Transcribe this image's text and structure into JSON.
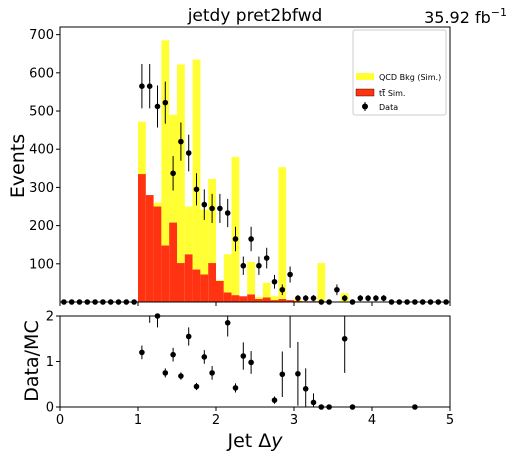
{
  "colors": {
    "qcd": "#ffff33",
    "ttbar": "#ff3311",
    "data": "#000000"
  },
  "chart_data": {
    "type": "bar",
    "title": "jetdy  pret2bfwd",
    "lumi_label": "35.92 fb",
    "lumi_exp": "−1",
    "xlabel_main": "Jet Δ",
    "xlabel_var": "y",
    "ylabel": "Events",
    "ratio_ylabel": "Data/MC",
    "xlim": [
      0,
      5
    ],
    "ylim": [
      0,
      720
    ],
    "ratio_ylim": [
      0,
      2
    ],
    "x_ticks": [
      "0",
      "1",
      "2",
      "3",
      "4",
      "5"
    ],
    "y_ticks": [
      "100",
      "200",
      "300",
      "400",
      "500",
      "600",
      "700"
    ],
    "ratio_y_ticks": [
      "0",
      "1",
      "2"
    ],
    "stacked": true,
    "legend_position": "upper-right",
    "legend": {
      "qcd": "QCD Bkg (Sim.)",
      "ttbar_prefix": "t",
      "ttbar_bar": "t",
      "ttbar_suffix": " Sim.",
      "data": "Data"
    },
    "bin_width": 0.1,
    "bin_edges_start": 0,
    "series": [
      {
        "name": "t t̄ Sim.",
        "values": [
          0,
          0,
          0,
          0,
          0,
          0,
          0,
          0,
          0,
          0,
          335,
          280,
          250,
          148,
          208,
          102,
          125,
          85,
          72,
          102,
          55,
          25,
          18,
          15,
          20,
          8,
          12,
          5,
          8,
          5,
          3,
          2,
          2,
          2,
          1,
          1,
          1,
          1,
          0,
          0,
          0,
          0,
          0,
          0,
          0,
          0,
          0,
          0,
          0,
          0
        ]
      },
      {
        "name": "QCD Bkg (Sim.)",
        "values": [
          0,
          0,
          0,
          0,
          0,
          0,
          0,
          0,
          0,
          0,
          137,
          0,
          10,
          537,
          282,
          520,
          125,
          550,
          170,
          220,
          2,
          100,
          362,
          0,
          85,
          5,
          38,
          10,
          345,
          0,
          5,
          0,
          0,
          100,
          0,
          0,
          22,
          0,
          0,
          0,
          0,
          0,
          0,
          0,
          0,
          0,
          0,
          0,
          0,
          0
        ]
      }
    ],
    "data_points": {
      "x": [
        0.05,
        0.15,
        0.25,
        0.35,
        0.45,
        0.55,
        0.65,
        0.75,
        0.85,
        0.95,
        1.05,
        1.15,
        1.25,
        1.35,
        1.45,
        1.55,
        1.65,
        1.75,
        1.85,
        1.95,
        2.05,
        2.15,
        2.25,
        2.35,
        2.45,
        2.55,
        2.65,
        2.75,
        2.85,
        2.95,
        3.05,
        3.15,
        3.25,
        3.35,
        3.45,
        3.55,
        3.65,
        3.75,
        3.85,
        3.95,
        4.05,
        4.15,
        4.25,
        4.35,
        4.45,
        4.55,
        4.65,
        4.75,
        4.85,
        4.95
      ],
      "y": [
        0,
        0,
        0,
        0,
        0,
        0,
        0,
        0,
        0,
        0,
        565,
        565,
        512,
        522,
        337,
        420,
        390,
        295,
        255,
        245,
        245,
        233,
        165,
        95,
        165,
        95,
        115,
        53,
        32,
        72,
        10,
        10,
        10,
        0,
        0,
        32,
        10,
        0,
        10,
        10,
        10,
        10,
        0,
        0,
        0,
        0,
        0,
        0,
        0,
        0
      ],
      "err": [
        0,
        0,
        0,
        0,
        0,
        0,
        0,
        0,
        0,
        0,
        58,
        58,
        55,
        55,
        45,
        50,
        48,
        42,
        40,
        38,
        38,
        37,
        32,
        24,
        32,
        24,
        27,
        18,
        14,
        21,
        8,
        8,
        8,
        0,
        0,
        14,
        8,
        0,
        8,
        8,
        8,
        8,
        0,
        0,
        0,
        0,
        0,
        0,
        0,
        0
      ]
    },
    "ratio_points": {
      "x": [
        1.05,
        1.15,
        1.25,
        1.35,
        1.45,
        1.55,
        1.65,
        1.75,
        1.85,
        1.95,
        2.15,
        2.25,
        2.35,
        2.45,
        2.75,
        2.85,
        2.95,
        3.05,
        3.15,
        3.25,
        3.35,
        3.45,
        3.65,
        3.75,
        4.55
      ],
      "y": [
        1.2,
        2.1,
        2.0,
        0.75,
        1.15,
        0.68,
        1.55,
        0.45,
        1.1,
        0.75,
        1.85,
        0.42,
        1.12,
        0.98,
        0.15,
        0.72,
        2.1,
        0.73,
        0.4,
        0.1,
        0.0,
        0.0,
        1.5,
        0.0,
        0.0
      ],
      "err": [
        0.15,
        0.25,
        0.25,
        0.1,
        0.15,
        0.08,
        0.2,
        0.08,
        0.15,
        0.15,
        0.3,
        0.1,
        0.3,
        0.25,
        0.08,
        0.5,
        0.8,
        0.7,
        0.45,
        0.2,
        0.05,
        0.05,
        0.75,
        0.05,
        0.05
      ]
    }
  }
}
